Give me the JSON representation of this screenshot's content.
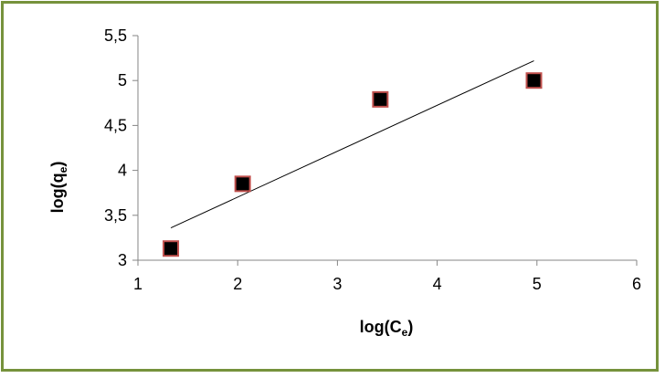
{
  "chart_data": {
    "type": "scatter",
    "xlabel": "log(C",
    "xlabel_sub": "e",
    "xlabel_end": ")",
    "ylabel": "log(q",
    "ylabel_sub": "e",
    "ylabel_end": ")",
    "xlim": [
      1,
      6
    ],
    "ylim": [
      3,
      5.5
    ],
    "x_ticks": [
      "1",
      "2",
      "3",
      "4",
      "5",
      "6"
    ],
    "y_ticks": [
      "3",
      "3,5",
      "4",
      "4,5",
      "5",
      "5,5"
    ],
    "points": [
      {
        "x": 1.33,
        "y": 3.13
      },
      {
        "x": 2.05,
        "y": 3.85
      },
      {
        "x": 3.43,
        "y": 4.79
      },
      {
        "x": 4.97,
        "y": 5.0
      }
    ],
    "trendline": {
      "x0": 1.33,
      "y0": 3.36,
      "x1": 4.97,
      "y1": 5.22
    },
    "grid": false,
    "legend": "none",
    "marker_fill": "#000000",
    "marker_edge": "#c0504d",
    "frame_color": "#76923c"
  }
}
